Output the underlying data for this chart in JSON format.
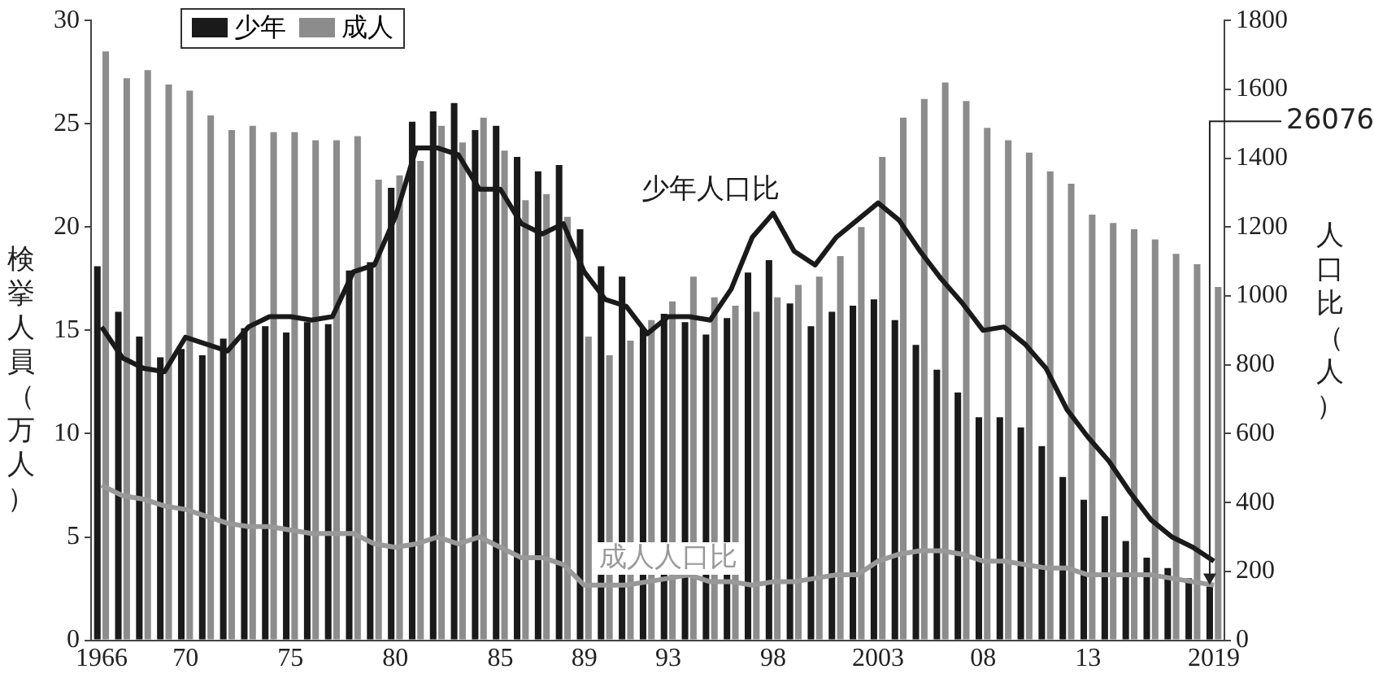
{
  "chart_data": {
    "type": "bar",
    "categories": [
      "1966",
      null,
      null,
      null,
      "70",
      null,
      null,
      null,
      null,
      "75",
      null,
      null,
      null,
      null,
      "80",
      null,
      null,
      null,
      null,
      "85",
      null,
      null,
      null,
      "89",
      null,
      null,
      null,
      "93",
      null,
      null,
      null,
      null,
      "98",
      null,
      null,
      null,
      null,
      "2003",
      null,
      null,
      null,
      null,
      "08",
      null,
      null,
      null,
      null,
      "13",
      null,
      null,
      null,
      null,
      null,
      "2019"
    ],
    "ylabel": "検挙人員（万人）",
    "y2label": "人口比（人）",
    "ylim": [
      0,
      30
    ],
    "yticks": [
      0,
      5,
      10,
      15,
      20,
      25,
      30
    ],
    "y2lim": [
      0,
      1800
    ],
    "y2ticks": [
      0,
      200,
      400,
      600,
      800,
      1000,
      1200,
      1400,
      1600,
      1800
    ],
    "series": [
      {
        "name": "少年",
        "color": "#1a1a1a",
        "values": [
          18.1,
          15.9,
          14.7,
          13.7,
          14.1,
          13.8,
          14.6,
          15.1,
          15.2,
          14.9,
          15.4,
          15.3,
          17.9,
          18.3,
          21.9,
          25.1,
          25.6,
          26.0,
          24.7,
          24.9,
          23.4,
          22.7,
          23.0,
          19.9,
          18.1,
          17.6,
          15.1,
          15.8,
          15.4,
          14.8,
          15.6,
          17.8,
          18.4,
          16.3,
          15.2,
          15.9,
          16.2,
          16.5,
          15.5,
          14.3,
          13.1,
          12.0,
          10.8,
          10.8,
          10.3,
          9.4,
          7.9,
          6.8,
          6.0,
          4.8,
          4.0,
          3.5,
          3.0,
          2.6
        ]
      },
      {
        "name": "成人",
        "color": "#8c8c8c",
        "values": [
          28.5,
          27.2,
          27.6,
          26.9,
          26.6,
          25.4,
          24.7,
          24.9,
          24.6,
          24.6,
          24.2,
          24.2,
          24.4,
          22.3,
          22.5,
          23.2,
          24.9,
          24.1,
          25.3,
          23.7,
          21.3,
          21.6,
          20.5,
          14.7,
          13.8,
          14.5,
          15.5,
          16.4,
          17.6,
          16.6,
          16.2,
          15.9,
          16.6,
          17.2,
          17.6,
          18.6,
          20.0,
          23.4,
          25.3,
          26.2,
          27.0,
          26.1,
          24.8,
          24.2,
          23.6,
          22.7,
          22.1,
          20.6,
          20.2,
          19.9,
          19.4,
          18.7,
          18.2,
          17.1
        ]
      },
      {
        "name": "少年人口比",
        "type": "line",
        "axis": "y2",
        "color": "#1a1a1a",
        "values": [
          910,
          820,
          790,
          780,
          880,
          860,
          840,
          910,
          940,
          940,
          930,
          940,
          1070,
          1090,
          1230,
          1430,
          1430,
          1410,
          1310,
          1310,
          1210,
          1180,
          1210,
          1070,
          990,
          970,
          890,
          940,
          940,
          930,
          1020,
          1170,
          1240,
          1130,
          1090,
          1170,
          1220,
          1270,
          1220,
          1130,
          1050,
          980,
          900,
          910,
          860,
          790,
          670,
          590,
          520,
          430,
          350,
          300,
          270,
          230
        ]
      },
      {
        "name": "成人人口比",
        "type": "line",
        "axis": "y2",
        "color": "#999999",
        "values": [
          450,
          420,
          410,
          390,
          380,
          360,
          340,
          330,
          330,
          320,
          310,
          310,
          310,
          280,
          270,
          280,
          300,
          280,
          300,
          270,
          240,
          240,
          220,
          160,
          160,
          160,
          170,
          180,
          190,
          170,
          170,
          160,
          170,
          170,
          180,
          190,
          190,
          230,
          250,
          260,
          260,
          250,
          230,
          230,
          220,
          210,
          210,
          190,
          190,
          190,
          190,
          180,
          170,
          160
        ]
      }
    ],
    "legend": "top left",
    "grid": false,
    "marker": "none",
    "annotations": [
      {
        "text": "26076",
        "x": "2019",
        "y": 2.6
      }
    ]
  }
}
